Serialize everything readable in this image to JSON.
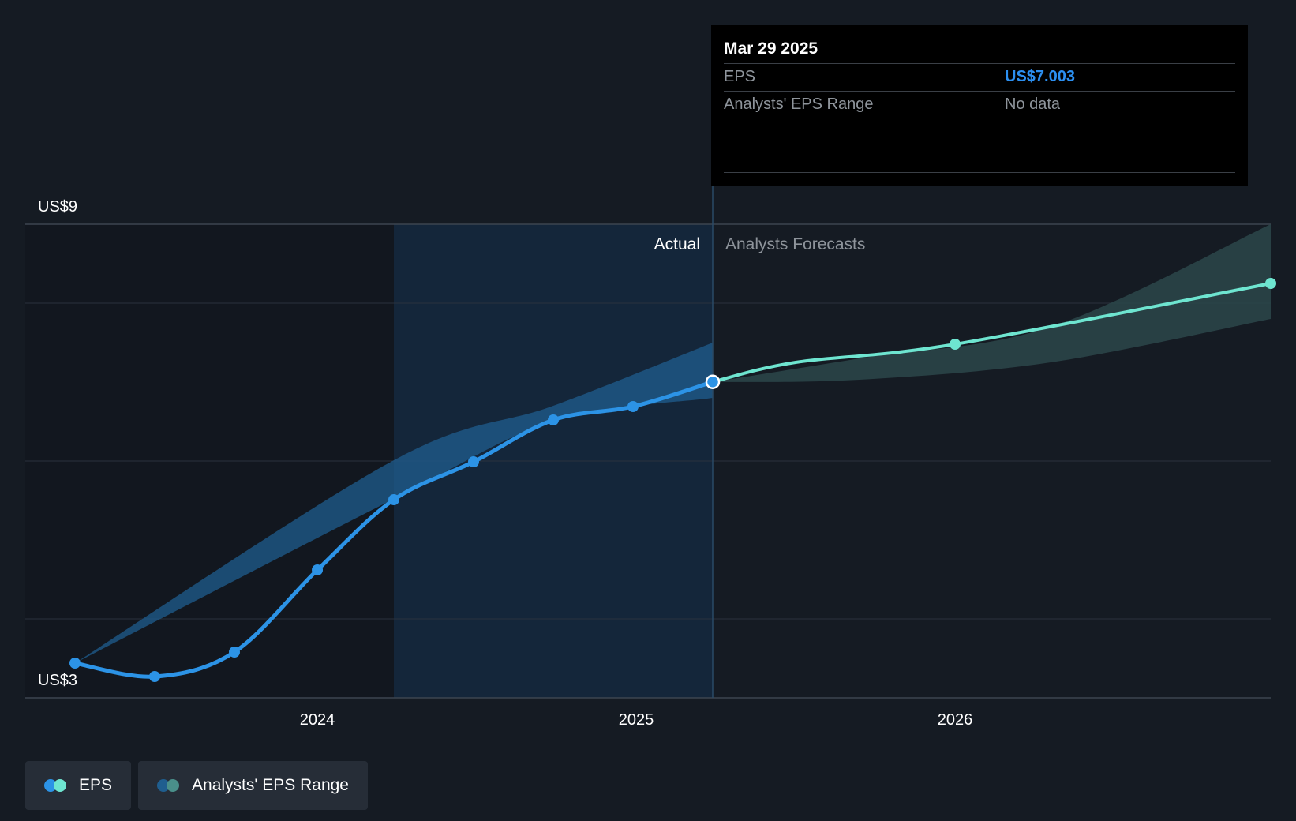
{
  "colors": {
    "background": "#151b23",
    "past_shade": "#12171f",
    "actual_band": "#14263a",
    "eps_line": "#2c93e6",
    "forecast_line": "#6ee5d0",
    "eps_range": "#1f5e8f",
    "forecast_range": "#2a4548"
  },
  "chart_data": {
    "type": "line",
    "y_axis_labels": [
      "US$9",
      "US$3"
    ],
    "ylim": [
      3,
      9
    ],
    "x_ticks": [
      {
        "label": "2024",
        "t": 2024.0
      },
      {
        "label": "2025",
        "t": 2025.0
      },
      {
        "label": "2026",
        "t": 2026.0
      }
    ],
    "xlim": [
      2023.1,
      2026.99
    ],
    "grid": true,
    "divider_t": 2025.24,
    "shade_start_t": 2024.24,
    "labels": {
      "actual": "Actual",
      "forecast": "Analysts Forecasts"
    },
    "series": [
      {
        "name": "EPS",
        "kind": "actual",
        "x": [
          2023.24,
          2023.49,
          2023.74,
          2024.0,
          2024.24,
          2024.49,
          2024.74,
          2024.99,
          2025.24
        ],
        "y": [
          3.44,
          3.27,
          3.58,
          4.62,
          5.51,
          5.99,
          6.52,
          6.69,
          7.003
        ]
      },
      {
        "name": "EPS Forecast",
        "kind": "forecast",
        "x": [
          2025.24,
          2025.5,
          2026.0,
          2026.99
        ],
        "y": [
          7.003,
          7.25,
          7.48,
          8.25
        ]
      },
      {
        "name": "Analysts' EPS Range (actual)",
        "kind": "range",
        "x": [
          2023.24,
          2024.24,
          2024.74,
          2025.24
        ],
        "low": [
          3.44,
          5.52,
          6.5,
          6.8
        ],
        "high": [
          3.44,
          6.01,
          6.7,
          7.5
        ]
      },
      {
        "name": "Analysts' EPS Range (forecast)",
        "kind": "forecast_range",
        "x": [
          2025.24,
          2025.7,
          2026.3,
          2026.99
        ],
        "low": [
          7.0,
          7.03,
          7.25,
          7.8
        ],
        "high": [
          7.0,
          7.3,
          7.7,
          9.0
        ]
      }
    ]
  },
  "tooltip": {
    "date": "Mar 29 2025",
    "rows": [
      {
        "label": "EPS",
        "value": "US$7.003"
      },
      {
        "label": "Analysts' EPS Range",
        "value": "No data"
      }
    ]
  },
  "legend": [
    {
      "label": "EPS",
      "icon": "eps-dots-icon",
      "color_a": "#2c93e6",
      "color_b": "#6ee5d0"
    },
    {
      "label": "Analysts' EPS Range",
      "icon": "range-dots-icon",
      "color_a": "#1f5e8f",
      "color_b": "#4a8f8a"
    }
  ]
}
